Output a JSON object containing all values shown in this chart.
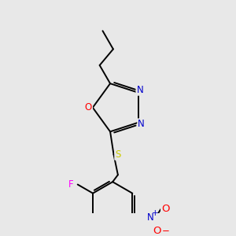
{
  "background_color": "#e8e8e8",
  "bond_color": "#000000",
  "atom_colors": {
    "O": "#ff0000",
    "N": "#0000cc",
    "S": "#cccc00",
    "F": "#ff00ff",
    "O_nitro": "#ff0000",
    "N_nitro": "#0000cc"
  },
  "font_size": 8.5,
  "line_width": 1.4,
  "figsize": [
    3.0,
    3.0
  ],
  "dpi": 100
}
